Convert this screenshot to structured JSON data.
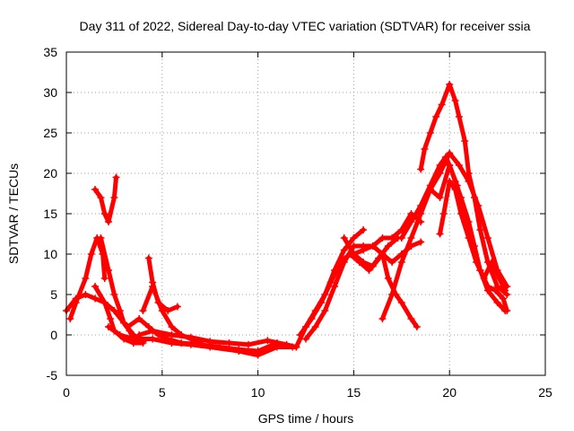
{
  "chart_data": {
    "type": "scatter",
    "title": "Day 311 of 2022, Sidereal Day-to-day VTEC variation (SDTVAR) for receiver ssia",
    "xlabel": "GPS time / hours",
    "ylabel": "SDTVAR / TECUs",
    "xlim": [
      0,
      25
    ],
    "ylim": [
      -5,
      35
    ],
    "xticks": [
      "0",
      "5",
      "10",
      "15",
      "20",
      "25"
    ],
    "yticks": [
      "-5",
      "0",
      "5",
      "10",
      "15",
      "20",
      "25",
      "30",
      "35"
    ],
    "grid": true,
    "marker": "+",
    "color": "#ff0000",
    "series": [
      {
        "name": "s1",
        "points": [
          [
            0,
            3
          ],
          [
            0.5,
            4.5
          ],
          [
            1,
            5
          ],
          [
            1.5,
            4.5
          ],
          [
            2,
            4
          ],
          [
            2.5,
            3
          ],
          [
            3,
            1.5
          ],
          [
            3.5,
            0
          ],
          [
            4,
            -0.8
          ]
        ]
      },
      {
        "name": "s2",
        "points": [
          [
            0.2,
            2
          ],
          [
            0.5,
            4
          ],
          [
            1,
            7
          ],
          [
            1.3,
            10
          ],
          [
            1.6,
            12
          ],
          [
            1.9,
            10
          ],
          [
            2,
            7
          ]
        ]
      },
      {
        "name": "s3",
        "points": [
          [
            1.5,
            18
          ],
          [
            1.8,
            17
          ],
          [
            2,
            15
          ],
          [
            2.2,
            14
          ],
          [
            2.5,
            17
          ],
          [
            2.6,
            19.5
          ]
        ]
      },
      {
        "name": "s4",
        "points": [
          [
            1.5,
            6
          ],
          [
            2,
            4
          ],
          [
            2.3,
            2
          ],
          [
            2.5,
            0.5
          ],
          [
            3,
            -0.5
          ],
          [
            3.5,
            -1
          ],
          [
            4,
            -1
          ]
        ]
      },
      {
        "name": "s5",
        "points": [
          [
            1.8,
            12
          ],
          [
            2.2,
            8
          ],
          [
            2.5,
            5
          ],
          [
            2.8,
            3
          ],
          [
            3,
            1.5
          ],
          [
            3.3,
            0.5
          ],
          [
            3.5,
            -0.5
          ]
        ]
      },
      {
        "name": "s6",
        "points": [
          [
            2.2,
            1
          ],
          [
            2.8,
            0
          ],
          [
            3.5,
            -0.5
          ],
          [
            4.5,
            -0.5
          ],
          [
            5.5,
            -1
          ],
          [
            6.5,
            -1.2
          ],
          [
            7.5,
            -1.5
          ],
          [
            9,
            -2
          ],
          [
            10,
            -2.5
          ],
          [
            11,
            -1.5
          ],
          [
            12,
            -1.5
          ]
        ]
      },
      {
        "name": "s7",
        "points": [
          [
            3.2,
            1
          ],
          [
            3.8,
            2
          ],
          [
            4.3,
            1
          ],
          [
            4.8,
            0
          ],
          [
            5.3,
            -0.5
          ],
          [
            6,
            -1
          ],
          [
            7,
            -1.2
          ],
          [
            8,
            -1.5
          ],
          [
            9,
            -1.8
          ],
          [
            10,
            -2
          ],
          [
            11,
            -1
          ],
          [
            11.8,
            -1.5
          ]
        ]
      },
      {
        "name": "s8",
        "points": [
          [
            4,
            3
          ],
          [
            4.5,
            6
          ],
          [
            5,
            3
          ],
          [
            5.5,
            1
          ],
          [
            6,
            0
          ],
          [
            6.5,
            -0.5
          ],
          [
            7,
            -1
          ]
        ]
      },
      {
        "name": "s9",
        "points": [
          [
            4.3,
            9.5
          ],
          [
            4.5,
            6.5
          ],
          [
            4.8,
            4
          ],
          [
            5.3,
            3
          ],
          [
            5.8,
            3.5
          ]
        ]
      },
      {
        "name": "s10",
        "points": [
          [
            3.8,
            0
          ],
          [
            4.5,
            0.5
          ],
          [
            5.5,
            0
          ],
          [
            6.5,
            -0.3
          ],
          [
            7.5,
            -0.8
          ],
          [
            8.5,
            -1
          ],
          [
            9.5,
            -1.2
          ],
          [
            10.5,
            -0.7
          ],
          [
            11.5,
            -1.2
          ],
          [
            12,
            -1.5
          ]
        ]
      },
      {
        "name": "s11",
        "points": [
          [
            12,
            -1.5
          ],
          [
            12.5,
            1
          ],
          [
            13,
            3
          ],
          [
            13.5,
            5
          ],
          [
            14,
            8
          ],
          [
            14.5,
            10.5
          ],
          [
            15,
            12
          ],
          [
            15.5,
            13
          ]
        ]
      },
      {
        "name": "s12",
        "points": [
          [
            12.2,
            0
          ],
          [
            12.8,
            2
          ],
          [
            13.3,
            4
          ],
          [
            13.8,
            6.5
          ],
          [
            14.3,
            9
          ],
          [
            14.8,
            10
          ],
          [
            15.3,
            9
          ],
          [
            15.8,
            8
          ],
          [
            16.3,
            9.5
          ],
          [
            16.8,
            11
          ],
          [
            17.3,
            12
          ]
        ]
      },
      {
        "name": "s13",
        "points": [
          [
            12.5,
            -0.5
          ],
          [
            13,
            1
          ],
          [
            13.5,
            3
          ],
          [
            14,
            6
          ],
          [
            14.5,
            9
          ],
          [
            15,
            11
          ],
          [
            15.5,
            11
          ],
          [
            16,
            11
          ],
          [
            16.5,
            12
          ],
          [
            17,
            12
          ],
          [
            17.5,
            13
          ],
          [
            18,
            15
          ],
          [
            18.5,
            14
          ]
        ]
      },
      {
        "name": "s14",
        "points": [
          [
            14.5,
            12
          ],
          [
            15,
            10
          ],
          [
            15.5,
            9
          ],
          [
            16,
            8.5
          ],
          [
            16.5,
            10
          ],
          [
            17,
            9
          ],
          [
            17.5,
            10
          ],
          [
            18,
            11
          ],
          [
            18.5,
            11.5
          ]
        ]
      },
      {
        "name": "s15",
        "points": [
          [
            15,
            10
          ],
          [
            15.5,
            10.5
          ],
          [
            16,
            11
          ],
          [
            16.5,
            10
          ],
          [
            16.8,
            7
          ],
          [
            17.2,
            5
          ],
          [
            17.5,
            4
          ],
          [
            18,
            2
          ],
          [
            18.3,
            1
          ]
        ]
      },
      {
        "name": "s16",
        "points": [
          [
            16.5,
            2
          ],
          [
            17,
            5
          ],
          [
            17.5,
            9
          ],
          [
            18,
            12
          ],
          [
            18.5,
            15
          ],
          [
            19,
            18
          ],
          [
            19.5,
            20
          ],
          [
            20,
            22.5
          ],
          [
            20.5,
            21
          ],
          [
            21,
            19
          ],
          [
            21.5,
            16
          ],
          [
            22,
            12
          ],
          [
            22.5,
            8
          ],
          [
            23,
            6
          ]
        ]
      },
      {
        "name": "s17",
        "points": [
          [
            18.5,
            20.5
          ],
          [
            18.7,
            23
          ],
          [
            19,
            25
          ],
          [
            19.3,
            27
          ],
          [
            19.6,
            28.5
          ],
          [
            20,
            31
          ],
          [
            20.3,
            29
          ],
          [
            20.5,
            27
          ],
          [
            20.8,
            24
          ],
          [
            21,
            20
          ],
          [
            21.3,
            17
          ],
          [
            21.6,
            13
          ],
          [
            22,
            9
          ],
          [
            22.5,
            6
          ],
          [
            23,
            5
          ]
        ]
      },
      {
        "name": "s18",
        "points": [
          [
            19,
            18
          ],
          [
            19.5,
            17
          ],
          [
            20,
            21
          ],
          [
            20.3,
            19
          ],
          [
            20.6,
            17
          ],
          [
            21,
            14
          ],
          [
            21.3,
            11
          ],
          [
            21.6,
            8
          ],
          [
            22,
            6
          ],
          [
            22.4,
            5.5
          ],
          [
            22.8,
            4.5
          ],
          [
            23,
            3
          ]
        ]
      },
      {
        "name": "s19",
        "points": [
          [
            19.5,
            12.5
          ],
          [
            19.7,
            15
          ],
          [
            20,
            19
          ],
          [
            20.3,
            18
          ],
          [
            20.6,
            15
          ],
          [
            21,
            12
          ],
          [
            21.4,
            9
          ],
          [
            21.8,
            7
          ],
          [
            22.2,
            9
          ],
          [
            22.6,
            7
          ],
          [
            22.9,
            5.5
          ]
        ]
      },
      {
        "name": "s20",
        "points": [
          [
            17.5,
            12
          ],
          [
            18,
            14
          ],
          [
            18.5,
            16
          ],
          [
            19,
            18.5
          ],
          [
            19.5,
            21
          ],
          [
            19.8,
            22
          ],
          [
            20,
            21
          ],
          [
            20.4,
            18.5
          ],
          [
            20.8,
            14
          ],
          [
            21.2,
            11
          ],
          [
            21.6,
            8
          ],
          [
            22,
            5.5
          ],
          [
            22.5,
            4
          ],
          [
            22.9,
            3
          ]
        ]
      }
    ]
  }
}
